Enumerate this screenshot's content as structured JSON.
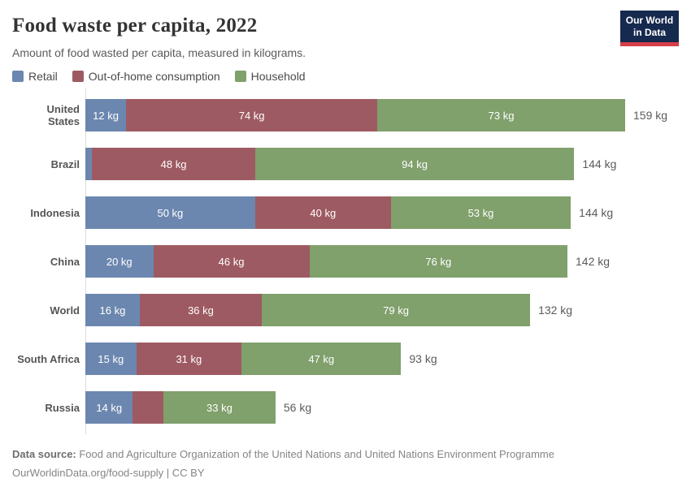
{
  "header": {
    "title": "Food waste per capita, 2022",
    "subtitle": "Amount of food wasted per capita, measured in kilograms.",
    "logo": {
      "line1": "Our World",
      "line2": "in Data",
      "bg_color": "#16294e",
      "strip_color": "#d73e47"
    }
  },
  "legend": [
    {
      "label": "Retail",
      "color": "#6c87af"
    },
    {
      "label": "Out-of-home consumption",
      "color": "#9e5a62"
    },
    {
      "label": "Household",
      "color": "#80a06c"
    }
  ],
  "chart_data": {
    "type": "bar",
    "orientation": "horizontal",
    "stacked": true,
    "title": "Food waste per capita, 2022",
    "subtitle": "Amount of food wasted per capita, measured in kilograms.",
    "unit": "kg",
    "axis_max": 159,
    "grid": false,
    "legend_position": "top",
    "categories": [
      "United States",
      "Brazil",
      "Indonesia",
      "China",
      "World",
      "South Africa",
      "Russia"
    ],
    "series": [
      {
        "name": "Retail",
        "color": "#6c87af",
        "values": [
          12,
          2,
          50,
          20,
          16,
          15,
          14
        ],
        "labels": [
          "12 kg",
          "",
          "50 kg",
          "20 kg",
          "16 kg",
          "15 kg",
          "14 kg"
        ]
      },
      {
        "name": "Out-of-home consumption",
        "color": "#9e5a62",
        "values": [
          74,
          48,
          40,
          46,
          36,
          31,
          9
        ],
        "labels": [
          "74 kg",
          "48 kg",
          "40 kg",
          "46 kg",
          "36 kg",
          "31 kg",
          ""
        ]
      },
      {
        "name": "Household",
        "color": "#80a06c",
        "values": [
          73,
          94,
          53,
          76,
          79,
          47,
          33
        ],
        "labels": [
          "73 kg",
          "94 kg",
          "53 kg",
          "76 kg",
          "79 kg",
          "47 kg",
          "33 kg"
        ]
      }
    ],
    "totals": [
      "159 kg",
      "144 kg",
      "144 kg",
      "142 kg",
      "132 kg",
      "93 kg",
      "56 kg"
    ]
  },
  "footer": {
    "source_label": "Data source:",
    "source_text": " Food and Agriculture Organization of the United Nations and United Nations Environment Programme",
    "link_line": "OurWorldinData.org/food-supply | CC BY"
  }
}
